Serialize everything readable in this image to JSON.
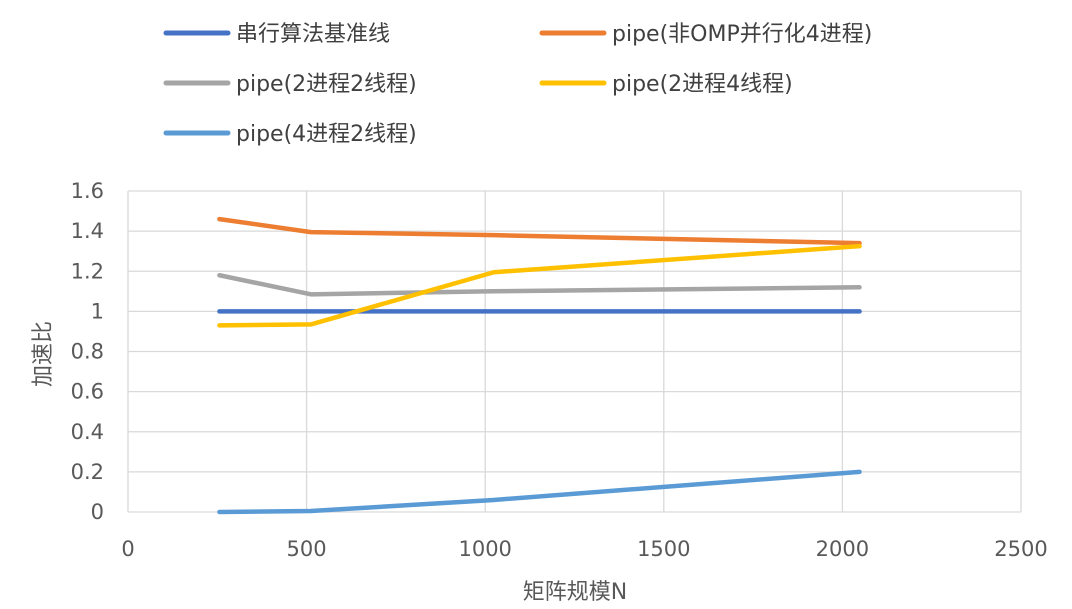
{
  "chart_data": {
    "type": "line",
    "title": "",
    "xlabel": "矩阵规模N",
    "ylabel": "加速比",
    "xlim": [
      0,
      2500
    ],
    "ylim": [
      0,
      1.6
    ],
    "xticks": [
      0,
      500,
      1000,
      1500,
      2000,
      2500
    ],
    "yticks": [
      0,
      0.2,
      0.4,
      0.6,
      0.8,
      1,
      1.2,
      1.4,
      1.6
    ],
    "grid": true,
    "legend_position": "top",
    "series": [
      {
        "name": "串行算法基准线",
        "color": "#4472C4",
        "x": [
          256,
          512,
          1024,
          2048
        ],
        "y": [
          1,
          1,
          1,
          1
        ]
      },
      {
        "name": "pipe(非OMP并行化4进程)",
        "color": "#ED7D31",
        "x": [
          256,
          512,
          1024,
          2048
        ],
        "y": [
          1.46,
          1.395,
          1.38,
          1.34
        ]
      },
      {
        "name": "pipe(2进程2线程)",
        "color": "#A5A5A5",
        "x": [
          256,
          512,
          1024,
          2048
        ],
        "y": [
          1.18,
          1.085,
          1.1,
          1.12
        ]
      },
      {
        "name": "pipe(2进程4线程)",
        "color": "#FFC000",
        "x": [
          256,
          512,
          1024,
          2048
        ],
        "y": [
          0.93,
          0.935,
          1.195,
          1.325
        ]
      },
      {
        "name": "pipe(4进程2线程)",
        "color": "#5B9BD5",
        "x": [
          256,
          512,
          1024,
          2048
        ],
        "y": [
          0.0,
          0.005,
          0.06,
          0.2
        ]
      }
    ]
  }
}
